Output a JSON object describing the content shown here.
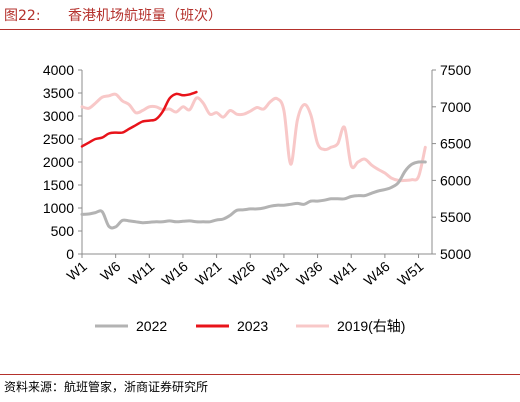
{
  "header": {
    "figure_label": "图22:",
    "title": "香港机场航班量（班次）"
  },
  "footer": {
    "source": "资料来源：航班管家，浙商证券研究所"
  },
  "colors": {
    "accent": "#b4312c",
    "series_2022": "#b3b3b3",
    "series_2023": "#e8131a",
    "series_2019": "#f8c8c8"
  },
  "chart_data": {
    "type": "line",
    "title": "",
    "xlabel": "",
    "ylabel": "",
    "x_tick_labels": [
      "W1",
      "W6",
      "W11",
      "W16",
      "W21",
      "W26",
      "W31",
      "W36",
      "W41",
      "W46",
      "W51"
    ],
    "y_left": {
      "ylim": [
        0,
        4000
      ],
      "ticks": [
        "0",
        "500",
        "1000",
        "1500",
        "2000",
        "2500",
        "3000",
        "3500",
        "4000"
      ]
    },
    "y_right": {
      "ylim": [
        5000,
        7500
      ],
      "ticks": [
        "5000",
        "5500",
        "6000",
        "6500",
        "7000",
        "7500"
      ]
    },
    "legend_position": "bottom",
    "grid": false,
    "series": [
      {
        "name": "2022",
        "axis": "left",
        "x": [
          1,
          2,
          3,
          4,
          5,
          6,
          7,
          8,
          9,
          10,
          11,
          12,
          13,
          14,
          15,
          16,
          17,
          18,
          19,
          20,
          21,
          22,
          23,
          24,
          25,
          26,
          27,
          28,
          29,
          30,
          31,
          32,
          33,
          34,
          35,
          36,
          37,
          38,
          39,
          40,
          41,
          42,
          43,
          44,
          45,
          46,
          47,
          48,
          49,
          50,
          51,
          52
        ],
        "values": [
          860,
          870,
          900,
          920,
          600,
          590,
          730,
          720,
          700,
          680,
          690,
          700,
          700,
          720,
          700,
          710,
          720,
          700,
          700,
          700,
          740,
          760,
          840,
          950,
          960,
          980,
          980,
          1000,
          1040,
          1060,
          1060,
          1080,
          1100,
          1080,
          1150,
          1150,
          1170,
          1200,
          1200,
          1200,
          1250,
          1270,
          1270,
          1320,
          1370,
          1400,
          1450,
          1550,
          1800,
          1950,
          2000,
          2000
        ]
      },
      {
        "name": "2023",
        "axis": "left",
        "x": [
          1,
          2,
          3,
          4,
          5,
          6,
          7,
          8,
          9,
          10,
          11,
          12,
          13,
          14,
          15,
          16,
          17,
          18
        ],
        "values": [
          2340,
          2420,
          2500,
          2530,
          2620,
          2640,
          2640,
          2720,
          2800,
          2880,
          2900,
          2930,
          3100,
          3380,
          3480,
          3450,
          3470,
          3520
        ]
      },
      {
        "name": "2019(右轴)",
        "axis": "right",
        "x": [
          1,
          2,
          3,
          4,
          5,
          6,
          7,
          8,
          9,
          10,
          11,
          12,
          13,
          14,
          15,
          16,
          17,
          18,
          19,
          20,
          21,
          22,
          23,
          24,
          25,
          26,
          27,
          28,
          29,
          30,
          31,
          32,
          33,
          34,
          35,
          36,
          37,
          38,
          39,
          40,
          41,
          42,
          43,
          44,
          45,
          46,
          47,
          48,
          49,
          50,
          51,
          52
        ],
        "values": [
          7000,
          6980,
          7050,
          7130,
          7150,
          7170,
          7080,
          7030,
          6920,
          6950,
          7000,
          7000,
          6960,
          6970,
          6930,
          7000,
          6960,
          7120,
          7050,
          6900,
          6920,
          6860,
          6950,
          6900,
          6900,
          6940,
          6990,
          6970,
          7070,
          7110,
          6950,
          6220,
          6820,
          7030,
          6890,
          6500,
          6420,
          6450,
          6500,
          6720,
          6200,
          6250,
          6290,
          6210,
          6150,
          6100,
          6030,
          6000,
          6000,
          6010,
          6050,
          6450
        ]
      }
    ]
  }
}
